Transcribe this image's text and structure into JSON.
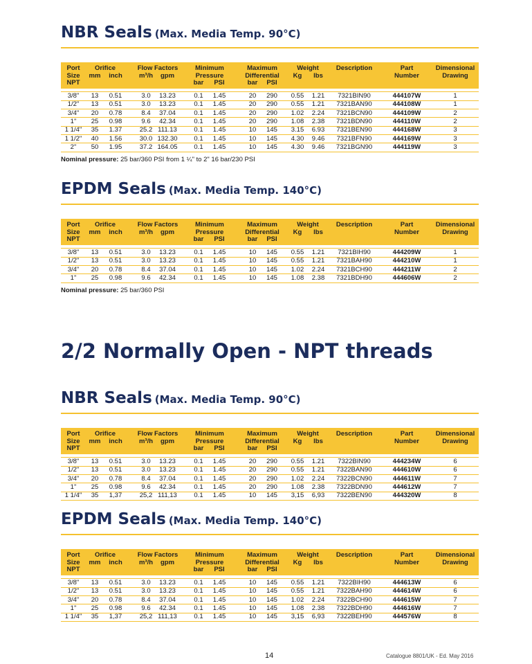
{
  "table_header": [
    {
      "label": "Port Size NPT"
    },
    {
      "label": "Orifice",
      "sub": [
        "mm",
        "inch"
      ]
    },
    {
      "label": "Flow Factors",
      "sub": [
        "m³/h",
        "gpm"
      ]
    },
    {
      "label": "Minimum Pressure",
      "sub": [
        "bar",
        "PSI"
      ]
    },
    {
      "label": "Maximum Differential",
      "sub": [
        "bar",
        "PSI"
      ]
    },
    {
      "label": "Weight",
      "sub": [
        "Kg",
        "lbs"
      ]
    },
    {
      "label": "Description"
    },
    {
      "label": "Part Number"
    },
    {
      "label": "Dimensional Drawing"
    }
  ],
  "heading": "2/2 Normally Open - NPT threads",
  "sections": [
    {
      "title": "NBR Seals",
      "subtitle": "(Max. Media Temp. 90°C)",
      "rows": [
        [
          "3/8\"",
          "13",
          "0.51",
          "3.0",
          "13.23",
          "0.1",
          "1.45",
          "20",
          "290",
          "0.55",
          "1.21",
          "7321BIN90",
          "444107W",
          "1"
        ],
        [
          "1/2\"",
          "13",
          "0.51",
          "3.0",
          "13.23",
          "0.1",
          "1.45",
          "20",
          "290",
          "0.55",
          "1.21",
          "7321BAN90",
          "444108W",
          "1"
        ],
        [
          "3/4\"",
          "20",
          "0.78",
          "8.4",
          "37.04",
          "0.1",
          "1.45",
          "20",
          "290",
          "1.02",
          "2.24",
          "7321BCN90",
          "444109W",
          "2"
        ],
        [
          "1\"",
          "25",
          "0.98",
          "9.6",
          "42.34",
          "0.1",
          "1.45",
          "20",
          "290",
          "1.08",
          "2.38",
          "7321BDN90",
          "444110W",
          "2"
        ],
        [
          "1 1/4\"",
          "35",
          "1.37",
          "25.2",
          "111.13",
          "0.1",
          "1.45",
          "10",
          "145",
          "3.15",
          "6.93",
          "7321BEN90",
          "444168W",
          "3"
        ],
        [
          "1 1/2\"",
          "40",
          "1.56",
          "30.0",
          "132.30",
          "0.1",
          "1.45",
          "10",
          "145",
          "4.30",
          "9.46",
          "7321BFN90",
          "444169W",
          "3"
        ],
        [
          "2\"",
          "50",
          "1.95",
          "37.2",
          "164.05",
          "0.1",
          "1.45",
          "10",
          "145",
          "4.30",
          "9.46",
          "7321BGN90",
          "444119W",
          "3"
        ]
      ],
      "note": {
        "label": "Nominal pressure:",
        "text": "25 bar/360 PSI from 1 ¼\" to 2\" 16 bar/230 PSI"
      }
    },
    {
      "title": "EPDM Seals",
      "subtitle": "(Max. Media Temp. 140°C)",
      "rows": [
        [
          "3/8\"",
          "13",
          "0.51",
          "3.0",
          "13.23",
          "0.1",
          "1.45",
          "10",
          "145",
          "0.55",
          "1.21",
          "7321BIH90",
          "444209W",
          "1"
        ],
        [
          "1/2\"",
          "13",
          "0.51",
          "3.0",
          "13.23",
          "0.1",
          "1.45",
          "10",
          "145",
          "0.55",
          "1.21",
          "7321BAH90",
          "444210W",
          "1"
        ],
        [
          "3/4\"",
          "20",
          "0.78",
          "8.4",
          "37.04",
          "0.1",
          "1.45",
          "10",
          "145",
          "1.02",
          "2.24",
          "7321BCH90",
          "444211W",
          "2"
        ],
        [
          "1\"",
          "25",
          "0.98",
          "9.6",
          "42.34",
          "0.1",
          "1.45",
          "10",
          "145",
          "1.08",
          "2.38",
          "7321BDH90",
          "444606W",
          "2"
        ]
      ],
      "note": {
        "label": "Nominal pressure:",
        "text": "25 bar/360 PSI"
      }
    },
    {
      "title": "NBR Seals",
      "subtitle": "(Max. Media Temp. 90°C)",
      "rows": [
        [
          "3/8\"",
          "13",
          "0.51",
          "3.0",
          "13.23",
          "0.1",
          "1.45",
          "20",
          "290",
          "0.55",
          "1.21",
          "7322BIN90",
          "444234W",
          "6"
        ],
        [
          "1/2\"",
          "13",
          "0.51",
          "3.0",
          "13.23",
          "0.1",
          "1.45",
          "20",
          "290",
          "0.55",
          "1.21",
          "7322BAN90",
          "444610W",
          "6"
        ],
        [
          "3/4\"",
          "20",
          "0.78",
          "8.4",
          "37.04",
          "0.1",
          "1.45",
          "20",
          "290",
          "1.02",
          "2.24",
          "7322BCN90",
          "444611W",
          "7"
        ],
        [
          "1\"",
          "25",
          "0.98",
          "9.6",
          "42.34",
          "0.1",
          "1.45",
          "20",
          "290",
          "1.08",
          "2.38",
          "7322BDN90",
          "444612W",
          "7"
        ],
        [
          "1 1/4\"",
          "35",
          "1,37",
          "25,2",
          "111,13",
          "0.1",
          "1.45",
          "10",
          "145",
          "3,15",
          "6,93",
          "7322BEN90",
          "444320W",
          "8"
        ]
      ]
    },
    {
      "title": "EPDM Seals",
      "subtitle": "(Max. Media Temp. 140°C)",
      "rows": [
        [
          "3/8\"",
          "13",
          "0.51",
          "3.0",
          "13.23",
          "0.1",
          "1.45",
          "10",
          "145",
          "0.55",
          "1.21",
          "7322BIH90",
          "444613W",
          "6"
        ],
        [
          "1/2\"",
          "13",
          "0.51",
          "3.0",
          "13.23",
          "0.1",
          "1.45",
          "10",
          "145",
          "0.55",
          "1.21",
          "7322BAH90",
          "444614W",
          "6"
        ],
        [
          "3/4\"",
          "20",
          "0.78",
          "8.4",
          "37.04",
          "0.1",
          "1.45",
          "10",
          "145",
          "1.02",
          "2.24",
          "7322BCH90",
          "444615W",
          "7"
        ],
        [
          "1\"",
          "25",
          "0.98",
          "9.6",
          "42.34",
          "0.1",
          "1.45",
          "10",
          "145",
          "1.08",
          "2.38",
          "7322BDH90",
          "444616W",
          "7"
        ],
        [
          "1 1/4\"",
          "35",
          "1,37",
          "25,2",
          "111,13",
          "0.1",
          "1.45",
          "10",
          "145",
          "3,15",
          "6,93",
          "7322BEH90",
          "444576W",
          "8"
        ]
      ]
    }
  ],
  "footer": {
    "page": "14",
    "catalogue": "Catalogue 8801/UK - Ed. May 2016"
  }
}
